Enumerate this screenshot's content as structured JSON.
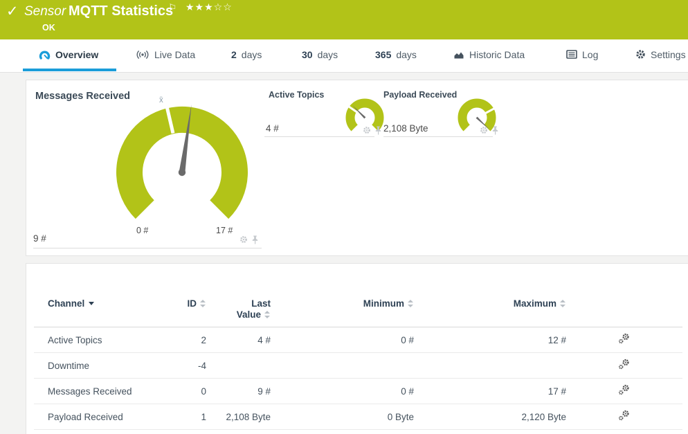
{
  "colors": {
    "green": "#b2c318",
    "blue": "#1b9dd9",
    "dark": "#2e4154",
    "tabtext": "#4e5b66",
    "celltext": "#45525e",
    "pagebg": "#f3f3f2",
    "muted": "#8fa0ad",
    "icongray": "#c3c7cb",
    "needle": "#6a6a6a"
  },
  "header": {
    "check_icon": "✓",
    "sensor_label": "Sensor",
    "title": "MQTT Statistics",
    "flag_icon": "⚐",
    "stars": "★★★☆☆",
    "status": "OK"
  },
  "tabs": [
    {
      "label": "Overview",
      "icon": "gauge-icon",
      "active": true
    },
    {
      "label": "Live Data",
      "icon": "broadcast-icon"
    },
    {
      "num": "2",
      "label": "days"
    },
    {
      "num": "30",
      "label": "days"
    },
    {
      "num": "365",
      "label": "days"
    },
    {
      "label": "Historic Data",
      "icon": "area-chart-icon"
    },
    {
      "label": "Log",
      "icon": "log-icon"
    },
    {
      "label": "Settings",
      "icon": "gear-icon"
    }
  ],
  "gauges": {
    "primary": {
      "title": "Messages Received",
      "value_label": "9 #",
      "min_label": "0 #",
      "max_label": "17 #",
      "avg_marker": "x̄",
      "value": 9,
      "min": 0,
      "max": 17
    },
    "small": [
      {
        "title": "Active Topics",
        "value_label": "4 #",
        "value": 4,
        "min": 0,
        "max": 12
      },
      {
        "title": "Payload Received",
        "value_label": "2,108 Byte",
        "value": 2108,
        "min": 0,
        "max": 2120
      }
    ]
  },
  "table": {
    "headers": {
      "channel": "Channel",
      "id": "ID",
      "last1": "Last",
      "last2": "Value",
      "min": "Minimum",
      "max": "Maximum"
    },
    "rows": [
      {
        "channel": "Active Topics",
        "id": "2",
        "last": "4 #",
        "min": "0 #",
        "max": "12 #"
      },
      {
        "channel": "Downtime",
        "id": "-4",
        "last": "",
        "min": "",
        "max": ""
      },
      {
        "channel": "Messages Received",
        "id": "0",
        "last": "9 #",
        "min": "0 #",
        "max": "17 #"
      },
      {
        "channel": "Payload Received",
        "id": "1",
        "last": "2,108 Byte",
        "min": "0 Byte",
        "max": "2,120 Byte"
      }
    ]
  }
}
